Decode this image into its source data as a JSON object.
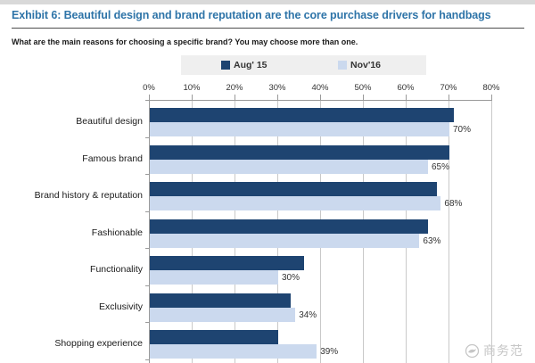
{
  "page": {
    "title": "Exhibit 6: Beautiful design and brand reputation are the core purchase drivers for handbags",
    "subtitle": "What are the main reasons for choosing a specific brand? You may choose more than one.",
    "title_color": "#2E74A8",
    "watermark": {
      "text": "商务范",
      "icon": "bird-logo-icon"
    }
  },
  "chart_data": {
    "type": "bar",
    "orientation": "horizontal",
    "title": "Exhibit 6: Beautiful design and brand reputation are the core purchase drivers for handbags",
    "question": "What are the main reasons for choosing a specific brand? You may choose more than one.",
    "categories": [
      "Beautiful design",
      "Famous brand",
      "Brand history & reputation",
      "Fashionable",
      "Functionality",
      "Exclusivity",
      "Shopping experience"
    ],
    "series": [
      {
        "name": "Aug' 15",
        "color": "#1E4471",
        "values": [
          71,
          70,
          67,
          65,
          36,
          33,
          30
        ],
        "labels_shown": false
      },
      {
        "name": "Nov'16",
        "color": "#CBD9EE",
        "values": [
          70,
          65,
          68,
          63,
          30,
          34,
          39
        ],
        "labels_shown": true,
        "data_labels": [
          "70%",
          "65%",
          "68%",
          "63%",
          "30%",
          "34%",
          "39%"
        ]
      }
    ],
    "x_axis": {
      "position": "top",
      "min": 0,
      "max": 80,
      "tick_step": 10,
      "ticks": [
        "0%",
        "10%",
        "20%",
        "30%",
        "40%",
        "50%",
        "60%",
        "70%",
        "80%"
      ]
    },
    "legend": {
      "position": "top",
      "background": "#EFEFEF"
    },
    "grid": true,
    "grid_color": "#C9C9C9",
    "axis_color": "#9A9A9A"
  }
}
